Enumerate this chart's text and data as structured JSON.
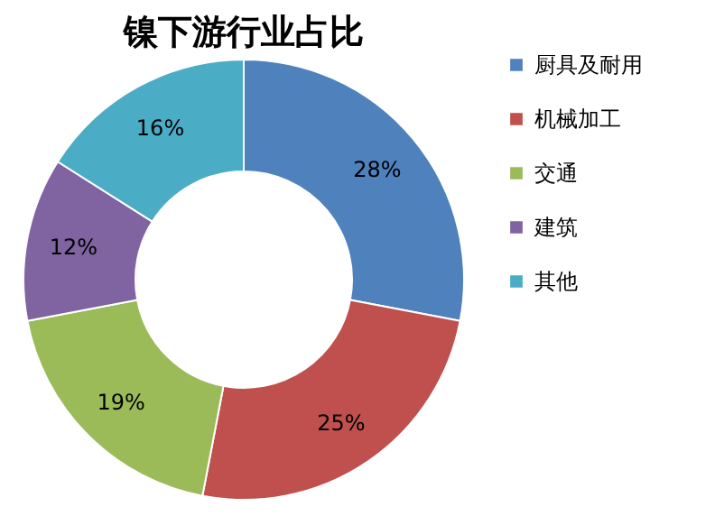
{
  "chart_data": {
    "type": "donut",
    "title": "镍下游行业占比",
    "categories": [
      "厨具及耐用",
      "机械加工",
      "交通",
      "建筑",
      "其他"
    ],
    "values": [
      28,
      25,
      19,
      12,
      16
    ],
    "colors": [
      "#4f81bd",
      "#c0504d",
      "#9bbb59",
      "#8064a2",
      "#4bacc6"
    ],
    "value_labels": [
      "28%",
      "25%",
      "19%",
      "12%",
      "16%"
    ],
    "legend": "right"
  }
}
